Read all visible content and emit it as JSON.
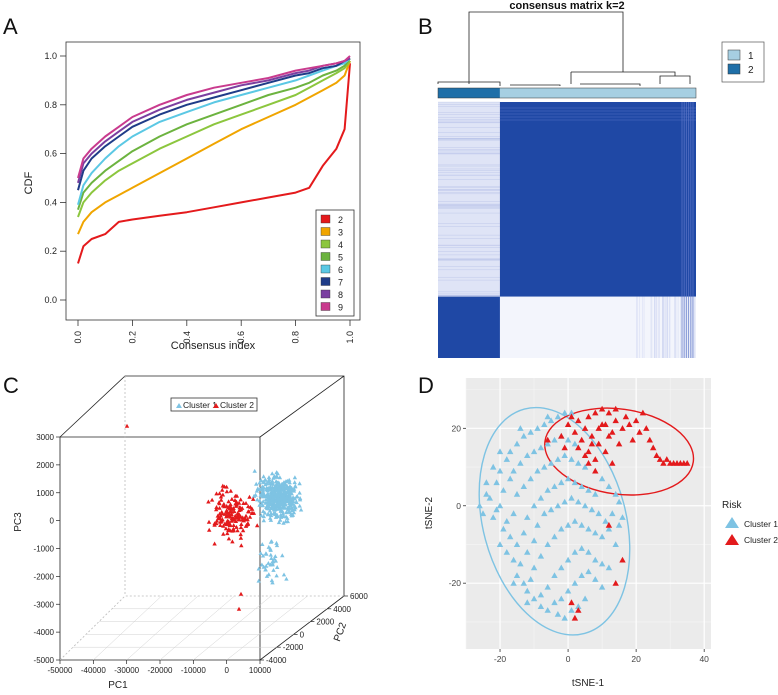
{
  "panels": {
    "a": {
      "letter": "A"
    },
    "b": {
      "letter": "B"
    },
    "c": {
      "letter": "C"
    },
    "d": {
      "letter": "D"
    }
  },
  "chart_data": [
    {
      "panel": "A",
      "type": "line",
      "title": "",
      "xlabel": "Consensus index",
      "ylabel": "CDF",
      "xlim": [
        0,
        1
      ],
      "ylim": [
        0,
        1
      ],
      "xticks": [
        "0.0",
        "0.2",
        "0.4",
        "0.6",
        "0.8",
        "1.0"
      ],
      "yticks": [
        "0.0",
        "0.2",
        "0.4",
        "0.6",
        "0.8",
        "1.0"
      ],
      "legend_position": "bottom-right",
      "x": [
        0,
        0.02,
        0.05,
        0.1,
        0.15,
        0.2,
        0.3,
        0.4,
        0.5,
        0.6,
        0.7,
        0.8,
        0.85,
        0.9,
        0.95,
        0.98,
        1.0
      ],
      "series": [
        {
          "name": "2",
          "color": "#e41a1c",
          "values": [
            0.15,
            0.22,
            0.25,
            0.27,
            0.32,
            0.33,
            0.345,
            0.36,
            0.38,
            0.4,
            0.42,
            0.44,
            0.46,
            0.55,
            0.62,
            0.7,
            0.97
          ]
        },
        {
          "name": "3",
          "color": "#f0a500",
          "values": [
            0.27,
            0.32,
            0.36,
            0.4,
            0.43,
            0.46,
            0.52,
            0.58,
            0.64,
            0.7,
            0.75,
            0.8,
            0.83,
            0.86,
            0.89,
            0.92,
            0.98
          ]
        },
        {
          "name": "4",
          "color": "#8cc63e",
          "values": [
            0.34,
            0.4,
            0.44,
            0.49,
            0.53,
            0.56,
            0.62,
            0.67,
            0.72,
            0.76,
            0.8,
            0.84,
            0.87,
            0.9,
            0.93,
            0.95,
            0.98
          ]
        },
        {
          "name": "5",
          "color": "#6cb33f",
          "values": [
            0.37,
            0.44,
            0.48,
            0.53,
            0.57,
            0.61,
            0.67,
            0.72,
            0.76,
            0.8,
            0.84,
            0.87,
            0.89,
            0.92,
            0.94,
            0.96,
            0.99
          ]
        },
        {
          "name": "6",
          "color": "#5bc8e4",
          "values": [
            0.39,
            0.47,
            0.52,
            0.58,
            0.63,
            0.67,
            0.73,
            0.77,
            0.81,
            0.84,
            0.87,
            0.9,
            0.92,
            0.94,
            0.96,
            0.97,
            0.99
          ]
        },
        {
          "name": "7",
          "color": "#1f3c88",
          "values": [
            0.45,
            0.53,
            0.58,
            0.63,
            0.67,
            0.71,
            0.76,
            0.8,
            0.83,
            0.86,
            0.89,
            0.92,
            0.93,
            0.95,
            0.96,
            0.98,
            0.99
          ]
        },
        {
          "name": "8",
          "color": "#7a3fa0",
          "values": [
            0.48,
            0.56,
            0.6,
            0.65,
            0.69,
            0.73,
            0.78,
            0.82,
            0.85,
            0.88,
            0.9,
            0.93,
            0.94,
            0.96,
            0.97,
            0.98,
            0.99
          ]
        },
        {
          "name": "9",
          "color": "#c93b8e",
          "values": [
            0.5,
            0.58,
            0.62,
            0.67,
            0.71,
            0.75,
            0.8,
            0.84,
            0.87,
            0.89,
            0.91,
            0.94,
            0.95,
            0.96,
            0.97,
            0.98,
            1.0
          ]
        }
      ]
    },
    {
      "panel": "B",
      "type": "heatmap",
      "title": "consensus matrix k=2",
      "legend": [
        {
          "label": "1",
          "color": "#a6cfe2"
        },
        {
          "label": "2",
          "color": "#1f6fa8"
        }
      ],
      "cluster_fraction": {
        "cluster2": 0.24,
        "cluster1": 0.76
      },
      "colors": {
        "high": "#1f48a5",
        "low": "#ffffff",
        "mid": "#b8c3e8"
      }
    },
    {
      "panel": "C",
      "type": "scatter",
      "title": "",
      "xlabel": "PC1",
      "ylabel": "PC2",
      "zlabel": "PC3",
      "xlim": [
        -50000,
        10000
      ],
      "ylim": [
        -4000,
        6000
      ],
      "zlim": [
        -5000,
        3000
      ],
      "xticks": [
        "-50000",
        "-40000",
        "-30000",
        "-20000",
        "-10000",
        "0",
        "10000"
      ],
      "yticks": [
        "-4000",
        "-2000",
        "0",
        "2000",
        "4000",
        "6000"
      ],
      "zticks": [
        "-5000",
        "-4000",
        "-3000",
        "-2000",
        "-1000",
        "0",
        "1000",
        "2000",
        "3000"
      ],
      "legend": [
        {
          "label": "Cluster 1",
          "color": "#7ec3e3"
        },
        {
          "label": "Cluster 2",
          "color": "#e31a1c"
        }
      ],
      "legend_position": "top-center",
      "series": [
        {
          "name": "Cluster 1",
          "color": "#7ec3e3",
          "count": 420
        },
        {
          "name": "Cluster 2",
          "color": "#e31a1c",
          "count": 160
        }
      ]
    },
    {
      "panel": "D",
      "type": "scatter",
      "title": "",
      "xlabel": "tSNE-1",
      "ylabel": "tSNE-2",
      "xlim": [
        -30,
        42
      ],
      "ylim": [
        -37,
        33
      ],
      "xticks": [
        -20,
        0,
        20,
        40
      ],
      "yticks": [
        -20,
        0,
        20
      ],
      "legend_title": "Risk",
      "legend": [
        {
          "label": "Cluster 1",
          "color": "#7ec3e3"
        },
        {
          "label": "Cluster 2",
          "color": "#e31a1c"
        }
      ],
      "legend_position": "right",
      "series": [
        {
          "name": "Cluster 1",
          "color": "#7ec3e3",
          "ellipse": {
            "cx": -4,
            "cy": -4,
            "rx": 21,
            "ry": 30,
            "angle": -15
          },
          "points": [
            [
              -25,
              -2
            ],
            [
              -23,
              2
            ],
            [
              -21,
              6
            ],
            [
              -20,
              9
            ],
            [
              -18,
              12
            ],
            [
              -17,
              14
            ],
            [
              -15,
              16
            ],
            [
              -13,
              18
            ],
            [
              -11,
              19
            ],
            [
              -9,
              20
            ],
            [
              -7,
              21
            ],
            [
              -5,
              22
            ],
            [
              -3,
              23
            ],
            [
              -1,
              24
            ],
            [
              1,
              24
            ],
            [
              -26,
              0
            ],
            [
              -22,
              -3
            ],
            [
              -20,
              0
            ],
            [
              -19,
              4
            ],
            [
              -17,
              7
            ],
            [
              -16,
              9
            ],
            [
              -14,
              11
            ],
            [
              -12,
              13
            ],
            [
              -10,
              14
            ],
            [
              -8,
              15
            ],
            [
              -6,
              16
            ],
            [
              -4,
              17
            ],
            [
              -2,
              18
            ],
            [
              0,
              17
            ],
            [
              2,
              16
            ],
            [
              -24,
              3
            ],
            [
              -21,
              -1
            ],
            [
              -18,
              -4
            ],
            [
              -16,
              -2
            ],
            [
              -15,
              3
            ],
            [
              -13,
              5
            ],
            [
              -11,
              7
            ],
            [
              -9,
              9
            ],
            [
              -7,
              10
            ],
            [
              -5,
              11
            ],
            [
              -3,
              12
            ],
            [
              -1,
              13
            ],
            [
              1,
              12
            ],
            [
              3,
              11
            ],
            [
              5,
              10
            ],
            [
              -19,
              -6
            ],
            [
              -17,
              -8
            ],
            [
              -15,
              -10
            ],
            [
              -13,
              -7
            ],
            [
              -12,
              -3
            ],
            [
              -10,
              0
            ],
            [
              -8,
              2
            ],
            [
              -6,
              4
            ],
            [
              -4,
              5
            ],
            [
              -2,
              6
            ],
            [
              0,
              7
            ],
            [
              2,
              6
            ],
            [
              4,
              5
            ],
            [
              6,
              4
            ],
            [
              8,
              3
            ],
            [
              -18,
              -12
            ],
            [
              -16,
              -14
            ],
            [
              -14,
              -15
            ],
            [
              -12,
              -12
            ],
            [
              -10,
              -9
            ],
            [
              -9,
              -5
            ],
            [
              -7,
              -2
            ],
            [
              -5,
              -1
            ],
            [
              -3,
              0
            ],
            [
              -1,
              1
            ],
            [
              1,
              2
            ],
            [
              3,
              1
            ],
            [
              5,
              0
            ],
            [
              7,
              -1
            ],
            [
              9,
              -2
            ],
            [
              -15,
              -18
            ],
            [
              -13,
              -20
            ],
            [
              -11,
              -19
            ],
            [
              -10,
              -16
            ],
            [
              -8,
              -13
            ],
            [
              -6,
              -10
            ],
            [
              -4,
              -8
            ],
            [
              -2,
              -6
            ],
            [
              0,
              -5
            ],
            [
              2,
              -4
            ],
            [
              4,
              -5
            ],
            [
              6,
              -6
            ],
            [
              8,
              -7
            ],
            [
              10,
              -8
            ],
            [
              12,
              -6
            ],
            [
              -12,
              -22
            ],
            [
              -10,
              -24
            ],
            [
              -8,
              -23
            ],
            [
              -6,
              -21
            ],
            [
              -4,
              -18
            ],
            [
              -2,
              -16
            ],
            [
              0,
              -14
            ],
            [
              2,
              -12
            ],
            [
              4,
              -11
            ],
            [
              6,
              -12
            ],
            [
              8,
              -14
            ],
            [
              10,
              -15
            ],
            [
              12,
              -16
            ],
            [
              14,
              -10
            ],
            [
              15,
              -5
            ],
            [
              -8,
              -26
            ],
            [
              -6,
              -27
            ],
            [
              -4,
              -25
            ],
            [
              -2,
              -24
            ],
            [
              0,
              -22
            ],
            [
              2,
              -20
            ],
            [
              4,
              -18
            ],
            [
              6,
              -17
            ],
            [
              8,
              -19
            ],
            [
              10,
              -21
            ],
            [
              -3,
              -28
            ],
            [
              -1,
              -29
            ],
            [
              1,
              -27
            ],
            [
              3,
              -26
            ],
            [
              5,
              -24
            ],
            [
              14,
              3
            ],
            [
              12,
              5
            ],
            [
              10,
              7
            ],
            [
              13,
              -2
            ],
            [
              11,
              -4
            ],
            [
              -20,
              14
            ],
            [
              -22,
              10
            ],
            [
              -24,
              6
            ],
            [
              -14,
              20
            ],
            [
              -6,
              23
            ],
            [
              16,
              -3
            ],
            [
              15,
              1
            ],
            [
              -12,
              -25
            ],
            [
              -16,
              -20
            ],
            [
              -20,
              -10
            ]
          ]
        },
        {
          "name": "Cluster 2",
          "color": "#e31a1c",
          "ellipse": {
            "cx": 15,
            "cy": 14,
            "rx": 22,
            "ry": 11,
            "angle": 8
          },
          "points": [
            [
              -2,
              18
            ],
            [
              0,
              21
            ],
            [
              1,
              23
            ],
            [
              2,
              19
            ],
            [
              3,
              22
            ],
            [
              4,
              17
            ],
            [
              5,
              20
            ],
            [
              6,
              14
            ],
            [
              7,
              18
            ],
            [
              8,
              12
            ],
            [
              9,
              16
            ],
            [
              10,
              21
            ],
            [
              11,
              14
            ],
            [
              12,
              18
            ],
            [
              13,
              11
            ],
            [
              14,
              22
            ],
            [
              15,
              16
            ],
            [
              16,
              20
            ],
            [
              17,
              23
            ],
            [
              18,
              21
            ],
            [
              19,
              17
            ],
            [
              20,
              22
            ],
            [
              21,
              19
            ],
            [
              22,
              24
            ],
            [
              23,
              20
            ],
            [
              24,
              17
            ],
            [
              25,
              15
            ],
            [
              26,
              13
            ],
            [
              27,
              12
            ],
            [
              28,
              11
            ],
            [
              29,
              12
            ],
            [
              30,
              11
            ],
            [
              31,
              11
            ],
            [
              32,
              11
            ],
            [
              33,
              11
            ],
            [
              34,
              11
            ],
            [
              35,
              11
            ],
            [
              6,
              23
            ],
            [
              8,
              24
            ],
            [
              10,
              25
            ],
            [
              12,
              24
            ],
            [
              14,
              25
            ],
            [
              9,
              20
            ],
            [
              11,
              21
            ],
            [
              13,
              19
            ],
            [
              7,
              16
            ],
            [
              5,
              13
            ],
            [
              3,
              15
            ],
            [
              -1,
              15
            ],
            [
              -6,
              17
            ],
            [
              1,
              -25
            ],
            [
              3,
              -27
            ],
            [
              14,
              -20
            ],
            [
              16,
              -14
            ],
            [
              2,
              -29
            ],
            [
              12,
              -5
            ],
            [
              8,
              9
            ],
            [
              6,
              11
            ]
          ]
        }
      ]
    }
  ]
}
